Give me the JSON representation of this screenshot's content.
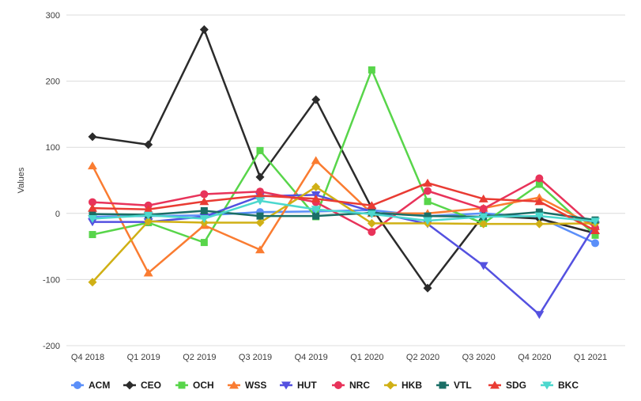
{
  "chart_data": {
    "type": "line",
    "title": "",
    "xlabel": "",
    "ylabel": "Values",
    "ylim": [
      -200,
      300
    ],
    "yticks": [
      300,
      200,
      100,
      0,
      -100,
      -200
    ],
    "grid": "horizontal",
    "grid_color": "#dcdcdc",
    "legend_position": "bottom",
    "categories": [
      "Q4 2018",
      "Q1 2019",
      "Q2 2019",
      "Q3 2019",
      "Q4 2019",
      "Q1 2020",
      "Q2 2020",
      "Q3 2020",
      "Q4 2020",
      "Q1 2021"
    ],
    "series": [
      {
        "name": "ACM",
        "color": "#5B8FF9",
        "marker": "circle",
        "values": [
          -5,
          -4,
          -3,
          2,
          3,
          5,
          -4,
          0,
          -6,
          -45
        ]
      },
      {
        "name": "CEO",
        "color": "#2B2B2B",
        "marker": "diamond",
        "values": [
          116,
          104,
          278,
          55,
          172,
          8,
          -113,
          -3,
          -8,
          -30
        ]
      },
      {
        "name": "OCH",
        "color": "#58D54A",
        "marker": "square",
        "values": [
          -32,
          -14,
          -44,
          95,
          -5,
          217,
          18,
          -15,
          44,
          -33
        ]
      },
      {
        "name": "WSS",
        "color": "#FA7C31",
        "marker": "triangle-up",
        "values": [
          72,
          -90,
          -18,
          -55,
          80,
          0,
          0,
          8,
          24,
          -20
        ]
      },
      {
        "name": "HUT",
        "color": "#5451E0",
        "marker": "triangle-down",
        "values": [
          -13,
          -13,
          -5,
          26,
          28,
          3,
          -16,
          -79,
          -153,
          -18
        ]
      },
      {
        "name": "NRC",
        "color": "#E8335A",
        "marker": "circle",
        "values": [
          17,
          12,
          29,
          33,
          17,
          -28,
          34,
          7,
          53,
          -22
        ]
      },
      {
        "name": "HKB",
        "color": "#D0B015",
        "marker": "diamond",
        "values": [
          -104,
          -12,
          -14,
          -14,
          40,
          -15,
          -15,
          -16,
          -16,
          -15
        ]
      },
      {
        "name": "VTL",
        "color": "#1A6E66",
        "marker": "square",
        "values": [
          -1,
          -2,
          4,
          -4,
          -4,
          1,
          -4,
          -5,
          2,
          -10
        ]
      },
      {
        "name": "SDG",
        "color": "#E93B33",
        "marker": "triangle-up",
        "values": [
          8,
          6,
          18,
          27,
          22,
          12,
          46,
          22,
          18,
          -26
        ]
      },
      {
        "name": "BKC",
        "color": "#4CD8CE",
        "marker": "triangle-down",
        "values": [
          -8,
          -3,
          -8,
          19,
          6,
          -1,
          -11,
          -5,
          -4,
          -12
        ]
      }
    ]
  }
}
